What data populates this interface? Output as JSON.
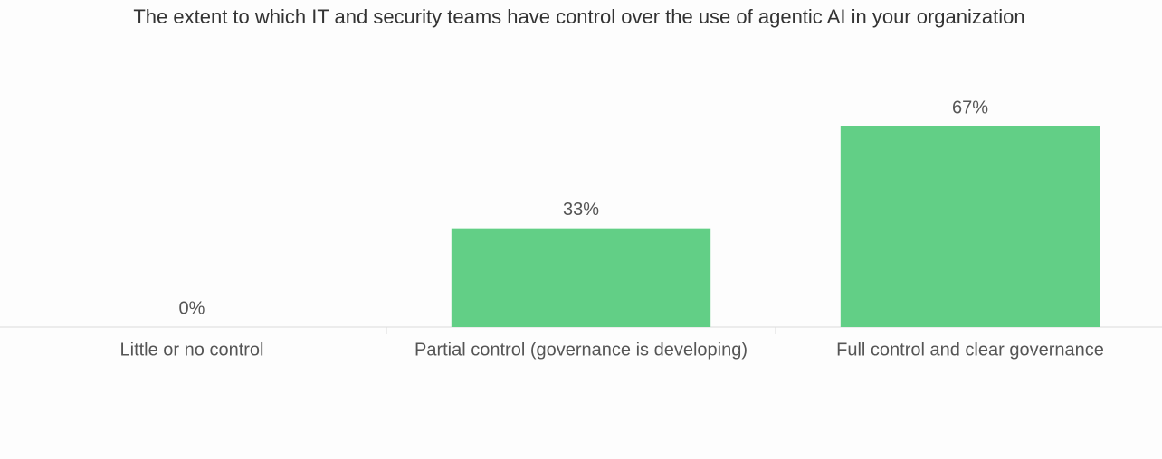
{
  "chart_data": {
    "type": "bar",
    "title": "The extent to which IT and security teams have control over the use of agentic AI in your organization",
    "categories": [
      "Little or no control",
      "Partial control (governance is developing)",
      "Full control and clear governance"
    ],
    "values": [
      0,
      33,
      67
    ],
    "value_labels": [
      "0%",
      "33%",
      "67%"
    ],
    "color": "#62cf86"
  }
}
